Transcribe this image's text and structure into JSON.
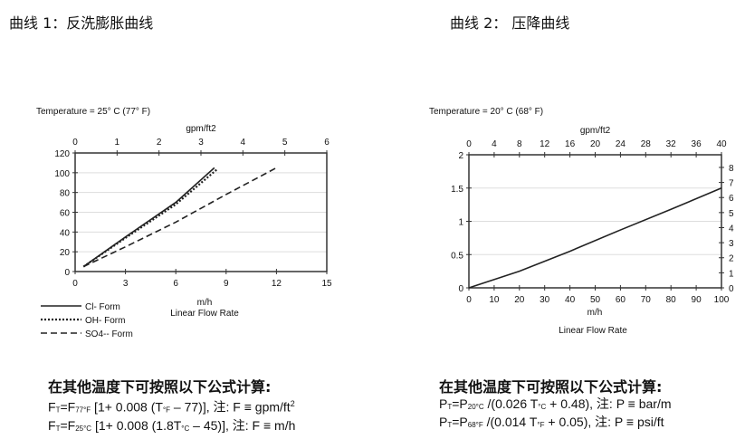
{
  "titles": [
    "曲线 1：反洗膨胀曲线",
    "曲线 2： 压降曲线"
  ],
  "chart_data": [
    {
      "type": "line",
      "subtitle": "Temperature = 25° C (77° F)",
      "top_xlabel": "gpm/ft2",
      "xlabel": "m/h",
      "xlabel2": "Linear Flow Rate",
      "xlim": [
        0,
        15
      ],
      "xticks": [
        0,
        3,
        6,
        9,
        12,
        15
      ],
      "top_xlim": [
        0,
        6
      ],
      "top_xticks": [
        0,
        1,
        2,
        3,
        4,
        5,
        6
      ],
      "ylim": [
        0,
        120
      ],
      "yticks": [
        0,
        20,
        40,
        60,
        80,
        100,
        120
      ],
      "grid": true,
      "legend": "bottom-left",
      "series": [
        {
          "name": "Cl- Form",
          "style": "solid",
          "x": [
            0.5,
            3,
            6,
            8.3
          ],
          "y": [
            5,
            35,
            70,
            105
          ]
        },
        {
          "name": "OH- Form",
          "style": "dotted",
          "x": [
            0.5,
            3,
            6,
            8.5
          ],
          "y": [
            5,
            34,
            68,
            104
          ]
        },
        {
          "name": "SO4-- Form",
          "style": "dashed",
          "x": [
            0.5,
            3,
            6,
            9,
            12
          ],
          "y": [
            5,
            25,
            50,
            78,
            105
          ]
        }
      ]
    },
    {
      "type": "line",
      "subtitle": "Temperature = 20° C (68° F)",
      "top_xlabel": "gpm/ft2",
      "xlabel": "m/h",
      "xlabel2": "Linear Flow Rate",
      "xlim": [
        0,
        100
      ],
      "xticks": [
        0,
        10,
        20,
        30,
        40,
        50,
        60,
        70,
        80,
        90,
        100
      ],
      "top_xlim": [
        0,
        40
      ],
      "top_xticks": [
        0,
        4,
        8,
        12,
        16,
        20,
        24,
        28,
        32,
        36,
        40
      ],
      "ylim": [
        0,
        2
      ],
      "yticks": [
        0,
        0.5,
        1,
        1.5,
        2
      ],
      "right_ylim": [
        0,
        8.84
      ],
      "right_yticks": [
        0,
        1,
        2,
        3,
        4,
        5,
        6,
        7,
        8
      ],
      "grid": true,
      "series": [
        {
          "style": "solid",
          "x": [
            0,
            20,
            40,
            60,
            80,
            100
          ],
          "y": [
            0,
            0.25,
            0.55,
            0.87,
            1.18,
            1.5
          ]
        }
      ]
    }
  ],
  "formulas": [
    {
      "head": "在其他温度下可按照以下公式计算:",
      "l1": [
        "F",
        "T",
        "=F",
        "77°F",
        " [1+ 0.008 (T",
        "°F",
        " – 77)], 注: F ≡ gpm/ft",
        "2"
      ],
      "l2": [
        "F",
        "T",
        "=F",
        "25°C",
        " [1+ 0.008 (1.8T",
        "°C",
        " – 45)], 注: F ≡ m/h",
        ""
      ]
    },
    {
      "head": "在其他温度下可按照以下公式计算:",
      "l1": [
        "P",
        "T",
        "=P",
        "20°C",
        " /(0.026 T",
        "°C",
        " + 0.48), 注: P ≡ bar/m",
        ""
      ],
      "l2": [
        "P",
        "T",
        "=P",
        "68°F",
        " /(0.014 T",
        "°F",
        " + 0.05), 注: P ≡ psi/ft",
        ""
      ]
    }
  ]
}
